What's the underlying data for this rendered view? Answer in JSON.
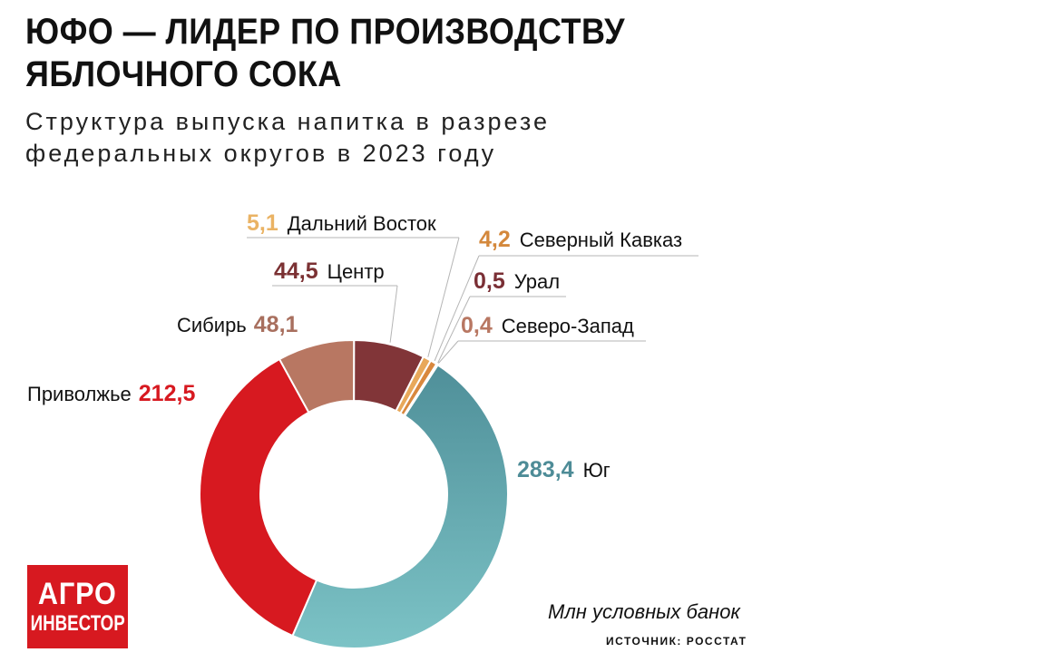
{
  "header": {
    "title": "ЮФО — ЛИДЕР ПО ПРОИЗВОДСТВУ ЯБЛОЧНОГО СОКА",
    "subtitle": "Структура выпуска напитка в разрезе федеральных округов в 2023 году"
  },
  "chart_data": {
    "type": "pie",
    "variant": "donut",
    "unit": "Млн условных банок",
    "labels": [
      "Юг",
      "Приволжье",
      "Сибирь",
      "Центр",
      "Дальний Восток",
      "Северный Кавказ",
      "Урал",
      "Северо-Запад"
    ],
    "values": [
      283.4,
      212.5,
      48.1,
      44.5,
      5.1,
      4.2,
      0.5,
      0.4
    ],
    "value_labels": [
      "283,4",
      "212,5",
      "48,1",
      "44,5",
      "5,1",
      "4,2",
      "0,5",
      "0,4"
    ],
    "colors": [
      "#5ea3ab",
      "#d71920",
      "#b87762",
      "#813538",
      "#e8a85a",
      "#d9883e",
      "#7a2c34",
      "#c77c6a"
    ],
    "label_colors": [
      "#4e8c97",
      "#d71920",
      "#a86f5e",
      "#7b3133",
      "#eab364",
      "#d4883c",
      "#7a2f35",
      "#b87762"
    ]
  },
  "footer": {
    "unit_label": "Млн условных банок",
    "source": "ИСТОЧНИК: РОССТАТ",
    "logo_line1": "АГРО",
    "logo_line2": "ИНВЕСТОР"
  }
}
